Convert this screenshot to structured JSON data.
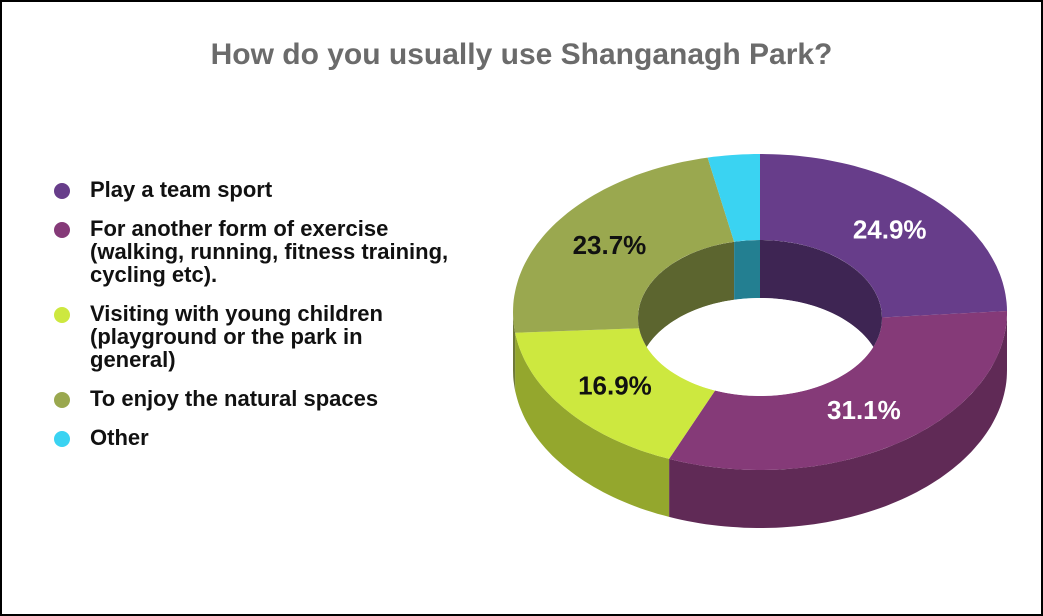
{
  "chart_data": {
    "type": "donut3d",
    "title": "How do you usually use Shanganagh Park?",
    "categories": [
      "Play a team sport",
      "For another form of exercise (walking, running, fitness training, cycling etc).",
      "Visiting with young children (playground or the park in general)",
      "To enjoy the natural spaces",
      "Other"
    ],
    "values": [
      24.9,
      31.1,
      16.9,
      23.7,
      3.4
    ],
    "value_labels": [
      "24.9%",
      "31.1%",
      "16.9%",
      "23.7%",
      null
    ],
    "colors": [
      "#673d8a",
      "#853a78",
      "#cde83f",
      "#9aa84f",
      "#3ad3f2"
    ],
    "legend": "left"
  }
}
